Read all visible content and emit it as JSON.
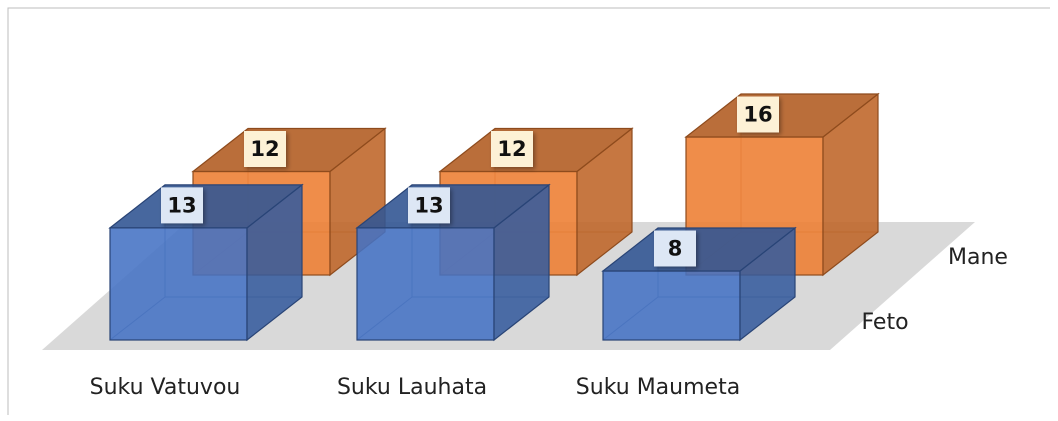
{
  "chart_data": {
    "type": "bar3d",
    "categories": [
      "Suku Vatuvou",
      "Suku Lauhata",
      "Suku Maumeta"
    ],
    "series": [
      {
        "name": "Feto",
        "color": "#4472c4",
        "values": [
          13,
          13,
          8
        ]
      },
      {
        "name": "Mane",
        "color": "#ed7d31",
        "values": [
          12,
          12,
          16
        ]
      }
    ]
  }
}
